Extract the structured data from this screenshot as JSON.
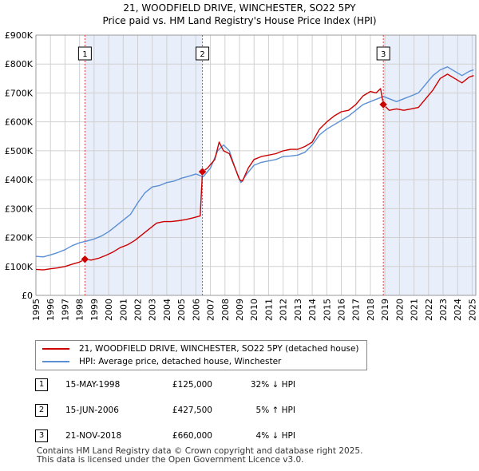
{
  "title": {
    "line1": "21, WOODFIELD DRIVE, WINCHESTER, SO22 5PY",
    "line2": "Price paid vs. HM Land Registry's House Price Index (HPI)"
  },
  "colors": {
    "property": "#cc0000",
    "hpi": "#5b8fd4",
    "shade": "#e8eefa",
    "marker_line": "#dd4444",
    "grid": "#d0d0d0"
  },
  "chart_data": {
    "type": "line",
    "title": "21, WOODFIELD DRIVE, WINCHESTER, SO22 5PY — Price paid vs. HM Land Registry's House Price Index (HPI)",
    "xlabel": "",
    "ylabel": "",
    "xlim": [
      1995.0,
      2025.25
    ],
    "ylim": [
      0,
      900000
    ],
    "yticks": [
      0,
      100000,
      200000,
      300000,
      400000,
      500000,
      600000,
      700000,
      800000,
      900000
    ],
    "ytick_labels": [
      "£0",
      "£100K",
      "£200K",
      "£300K",
      "£400K",
      "£500K",
      "£600K",
      "£700K",
      "£800K",
      "£900K"
    ],
    "xticks": [
      1995,
      1996,
      1997,
      1998,
      1999,
      2000,
      2001,
      2002,
      2003,
      2004,
      2005,
      2006,
      2007,
      2008,
      2009,
      2010,
      2011,
      2012,
      2013,
      2014,
      2015,
      2016,
      2017,
      2018,
      2019,
      2020,
      2021,
      2022,
      2023,
      2024,
      2025
    ],
    "grid": true,
    "series": [
      {
        "name": "21, WOODFIELD DRIVE, WINCHESTER, SO22 5PY (detached house)",
        "color": "#cc0000",
        "x": [
          1995.0,
          1995.5,
          1996.0,
          1996.5,
          1997.0,
          1997.5,
          1998.0,
          1998.37,
          1998.8,
          1999.3,
          1999.8,
          2000.3,
          2000.8,
          2001.3,
          2001.8,
          2002.3,
          2002.8,
          2003.3,
          2003.8,
          2004.3,
          2004.8,
          2005.3,
          2005.8,
          2006.3,
          2006.45,
          2006.8,
          2007.3,
          2007.6,
          2007.9,
          2008.3,
          2008.7,
          2009.0,
          2009.2,
          2009.6,
          2010.0,
          2010.5,
          2011.0,
          2011.5,
          2012.0,
          2012.5,
          2013.0,
          2013.5,
          2014.0,
          2014.5,
          2015.0,
          2015.5,
          2016.0,
          2016.5,
          2017.0,
          2017.5,
          2018.0,
          2018.4,
          2018.7,
          2018.89,
          2019.3,
          2019.8,
          2020.3,
          2020.8,
          2021.3,
          2021.8,
          2022.3,
          2022.8,
          2023.3,
          2023.8,
          2024.3,
          2024.8,
          2025.1
        ],
        "values": [
          90000,
          88000,
          92000,
          95000,
          100000,
          108000,
          115000,
          125000,
          122000,
          128000,
          138000,
          150000,
          165000,
          175000,
          190000,
          210000,
          230000,
          250000,
          255000,
          255000,
          258000,
          262000,
          268000,
          275000,
          427500,
          440000,
          470000,
          530000,
          500000,
          490000,
          440000,
          400000,
          395000,
          440000,
          470000,
          480000,
          485000,
          490000,
          500000,
          505000,
          505000,
          515000,
          530000,
          575000,
          600000,
          620000,
          635000,
          640000,
          660000,
          690000,
          705000,
          700000,
          715000,
          660000,
          640000,
          645000,
          640000,
          645000,
          650000,
          680000,
          710000,
          750000,
          765000,
          750000,
          735000,
          755000,
          760000
        ]
      },
      {
        "name": "HPI: Average price, detached house, Winchester",
        "color": "#5b8fd4",
        "x": [
          1995.0,
          1995.5,
          1996.0,
          1996.5,
          1997.0,
          1997.5,
          1998.0,
          1998.5,
          1999.0,
          1999.5,
          2000.0,
          2000.5,
          2001.0,
          2001.5,
          2002.0,
          2002.5,
          2003.0,
          2003.5,
          2004.0,
          2004.5,
          2005.0,
          2005.5,
          2006.0,
          2006.5,
          2007.0,
          2007.5,
          2007.9,
          2008.3,
          2008.7,
          2009.1,
          2009.5,
          2010.0,
          2010.5,
          2011.0,
          2011.5,
          2012.0,
          2012.5,
          2013.0,
          2013.5,
          2014.0,
          2014.5,
          2015.0,
          2015.5,
          2016.0,
          2016.5,
          2017.0,
          2017.5,
          2018.0,
          2018.5,
          2018.89,
          2019.3,
          2019.8,
          2020.3,
          2020.8,
          2021.3,
          2021.8,
          2022.3,
          2022.8,
          2023.3,
          2023.8,
          2024.3,
          2024.8,
          2025.1
        ],
        "values": [
          135000,
          133000,
          140000,
          148000,
          158000,
          172000,
          182000,
          188000,
          195000,
          205000,
          220000,
          240000,
          260000,
          280000,
          320000,
          355000,
          375000,
          380000,
          390000,
          395000,
          405000,
          412000,
          420000,
          410000,
          440000,
          500000,
          520000,
          500000,
          440000,
          390000,
          420000,
          450000,
          460000,
          465000,
          470000,
          480000,
          482000,
          485000,
          495000,
          520000,
          555000,
          575000,
          590000,
          605000,
          620000,
          640000,
          660000,
          670000,
          680000,
          688000,
          680000,
          670000,
          680000,
          690000,
          700000,
          730000,
          760000,
          780000,
          790000,
          775000,
          760000,
          775000,
          780000
        ]
      }
    ],
    "annotations": [
      {
        "label": "1",
        "x": 1998.37,
        "value": 125000
      },
      {
        "label": "2",
        "x": 2006.45,
        "value": 427500
      },
      {
        "label": "3",
        "x": 2018.89,
        "value": 660000
      }
    ],
    "shaded_regions": [
      [
        1998.37,
        2006.45
      ],
      [
        2018.89,
        2025.25
      ]
    ]
  },
  "legend": {
    "property_label": "21, WOODFIELD DRIVE, WINCHESTER, SO22 5PY (detached house)",
    "hpi_label": "HPI: Average price, detached house, Winchester"
  },
  "transactions": [
    {
      "num": "1",
      "date": "15-MAY-1998",
      "price": "£125,000",
      "hpi": "32% ↓ HPI"
    },
    {
      "num": "2",
      "date": "15-JUN-2006",
      "price": "£427,500",
      "hpi": "5% ↑ HPI"
    },
    {
      "num": "3",
      "date": "21-NOV-2018",
      "price": "£660,000",
      "hpi": "4% ↓ HPI"
    }
  ],
  "footer": {
    "line1": "Contains HM Land Registry data © Crown copyright and database right 2025.",
    "line2": "This data is licensed under the Open Government Licence v3.0."
  }
}
